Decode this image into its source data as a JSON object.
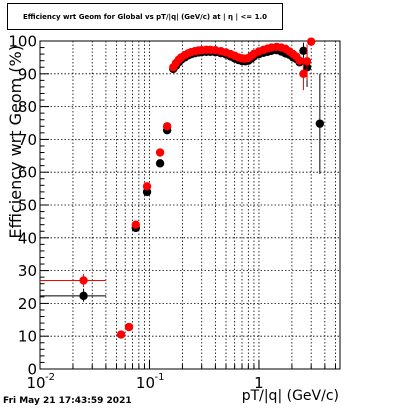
{
  "title": "Efficiency wrt Geom for Global vs pT/|q| (GeV/c) at | η | <= 1.0",
  "timestamp": "Fri May 21 17:43:59 2021",
  "colors": {
    "black_series": "#000000",
    "red_series": "#ff0000",
    "grid": "#000000"
  },
  "chart_data": {
    "type": "scatter",
    "title": "Efficiency wrt Geom for Global vs pT/|q| (GeV/c) at | η | <= 1.0",
    "xlabel": "pT/|q| (GeV/c)",
    "ylabel": "Efficiency wrt Geom (%)",
    "xscale": "log",
    "xlim": [
      0.01,
      5.5
    ],
    "ylim": [
      0,
      100
    ],
    "grid": true,
    "x_tick_labels": [
      {
        "value": 0.01,
        "label": "10",
        "sup": "-2"
      },
      {
        "value": 0.1,
        "label": "10",
        "sup": "-1"
      },
      {
        "value": 1,
        "label": "1",
        "sup": ""
      }
    ],
    "y_ticks": [
      0,
      10,
      20,
      30,
      40,
      50,
      60,
      70,
      80,
      90,
      100
    ],
    "series": [
      {
        "color": "#000000",
        "points": [
          {
            "x": 0.025,
            "y": 22.3,
            "xlo": 0.01,
            "xhi": 0.04,
            "ylo": 20.5,
            "yhi": 24.5
          },
          {
            "x": 0.075,
            "y": 43.0,
            "xlo": 0.07,
            "xhi": 0.08
          },
          {
            "x": 0.095,
            "y": 54.0,
            "xlo": 0.09,
            "xhi": 0.1
          },
          {
            "x": 0.125,
            "y": 62.7,
            "xlo": 0.12,
            "xhi": 0.13
          },
          {
            "x": 0.145,
            "y": 72.8
          },
          {
            "x": 0.165,
            "y": 91.5
          },
          {
            "x": 0.175,
            "y": 92.5
          },
          {
            "x": 0.185,
            "y": 93.5
          },
          {
            "x": 0.195,
            "y": 94.3
          },
          {
            "x": 0.21,
            "y": 95.0
          },
          {
            "x": 0.225,
            "y": 95.6
          },
          {
            "x": 0.24,
            "y": 96.0
          },
          {
            "x": 0.26,
            "y": 96.3
          },
          {
            "x": 0.28,
            "y": 96.5
          },
          {
            "x": 0.3,
            "y": 96.6
          },
          {
            "x": 0.33,
            "y": 96.7
          },
          {
            "x": 0.36,
            "y": 96.7
          },
          {
            "x": 0.4,
            "y": 96.6
          },
          {
            "x": 0.45,
            "y": 96.3
          },
          {
            "x": 0.5,
            "y": 95.9
          },
          {
            "x": 0.55,
            "y": 95.3
          },
          {
            "x": 0.6,
            "y": 94.7
          },
          {
            "x": 0.65,
            "y": 94.2
          },
          {
            "x": 0.7,
            "y": 93.9
          },
          {
            "x": 0.75,
            "y": 93.8
          },
          {
            "x": 0.8,
            "y": 94.0
          },
          {
            "x": 0.85,
            "y": 94.6
          },
          {
            "x": 0.9,
            "y": 95.3
          },
          {
            "x": 1.0,
            "y": 96.0
          },
          {
            "x": 1.1,
            "y": 96.4
          },
          {
            "x": 1.2,
            "y": 96.7
          },
          {
            "x": 1.3,
            "y": 97.0
          },
          {
            "x": 1.45,
            "y": 97.2
          },
          {
            "x": 1.6,
            "y": 96.8
          },
          {
            "x": 1.75,
            "y": 96.2
          },
          {
            "x": 1.9,
            "y": 95.8
          },
          {
            "x": 2.05,
            "y": 95.0
          },
          {
            "x": 2.2,
            "y": 94.5
          },
          {
            "x": 2.35,
            "y": 93.5
          },
          {
            "x": 2.55,
            "y": 97.0,
            "ylo": 92,
            "yhi": 99.5
          },
          {
            "x": 2.75,
            "y": 92.0,
            "ylo": 86,
            "yhi": 97.5
          },
          {
            "x": 3.6,
            "y": 74.8,
            "ylo": 59.5,
            "yhi": 90.0
          }
        ]
      },
      {
        "color": "#ff0000",
        "points": [
          {
            "x": 0.025,
            "y": 27.0,
            "xlo": 0.01,
            "xhi": 0.04,
            "ylo": 25.0,
            "yhi": 29.0
          },
          {
            "x": 0.055,
            "y": 10.5,
            "xlo": 0.05,
            "xhi": 0.06
          },
          {
            "x": 0.065,
            "y": 12.8,
            "xlo": 0.06,
            "xhi": 0.07
          },
          {
            "x": 0.075,
            "y": 44.0,
            "xlo": 0.07,
            "xhi": 0.08
          },
          {
            "x": 0.095,
            "y": 55.7,
            "xlo": 0.09,
            "xhi": 0.1
          },
          {
            "x": 0.125,
            "y": 66.0,
            "xlo": 0.12,
            "xhi": 0.13
          },
          {
            "x": 0.145,
            "y": 74.0
          },
          {
            "x": 0.165,
            "y": 92.0
          },
          {
            "x": 0.175,
            "y": 93.3
          },
          {
            "x": 0.185,
            "y": 94.3
          },
          {
            "x": 0.195,
            "y": 95.0
          },
          {
            "x": 0.21,
            "y": 95.7
          },
          {
            "x": 0.225,
            "y": 96.2
          },
          {
            "x": 0.24,
            "y": 96.6
          },
          {
            "x": 0.26,
            "y": 96.9
          },
          {
            "x": 0.28,
            "y": 97.1
          },
          {
            "x": 0.3,
            "y": 97.2
          },
          {
            "x": 0.33,
            "y": 97.3
          },
          {
            "x": 0.36,
            "y": 97.3
          },
          {
            "x": 0.4,
            "y": 97.2
          },
          {
            "x": 0.45,
            "y": 96.9
          },
          {
            "x": 0.5,
            "y": 96.5
          },
          {
            "x": 0.55,
            "y": 96.0
          },
          {
            "x": 0.6,
            "y": 95.5
          },
          {
            "x": 0.65,
            "y": 95.0
          },
          {
            "x": 0.7,
            "y": 94.7
          },
          {
            "x": 0.75,
            "y": 94.6
          },
          {
            "x": 0.8,
            "y": 94.8
          },
          {
            "x": 0.85,
            "y": 95.4
          },
          {
            "x": 0.9,
            "y": 96.1
          },
          {
            "x": 1.0,
            "y": 96.8
          },
          {
            "x": 1.1,
            "y": 97.3
          },
          {
            "x": 1.2,
            "y": 97.7
          },
          {
            "x": 1.3,
            "y": 98.0
          },
          {
            "x": 1.45,
            "y": 98.2
          },
          {
            "x": 1.6,
            "y": 98.0
          },
          {
            "x": 1.75,
            "y": 97.6
          },
          {
            "x": 1.9,
            "y": 96.8
          },
          {
            "x": 2.05,
            "y": 96.0
          },
          {
            "x": 2.2,
            "y": 95.2
          },
          {
            "x": 2.35,
            "y": 94.0
          },
          {
            "x": 2.55,
            "y": 90.0,
            "ylo": 85,
            "yhi": 95
          },
          {
            "x": 2.75,
            "y": 93.8,
            "ylo": 88,
            "yhi": 99
          },
          {
            "x": 3.0,
            "y": 99.8
          }
        ]
      }
    ]
  }
}
